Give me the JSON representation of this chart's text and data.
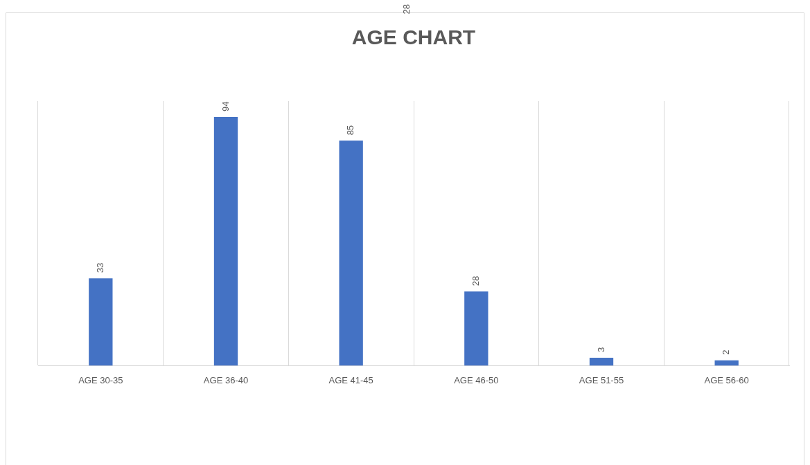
{
  "chart_data": {
    "type": "bar",
    "title": "AGE CHART",
    "categories": [
      "AGE 30-35",
      "AGE 36-40",
      "AGE 41-45",
      "AGE 46-50",
      "AGE 51-55",
      "AGE 56-60"
    ],
    "values": [
      33,
      94,
      85,
      28,
      3,
      2
    ],
    "color": "#4472c4",
    "data_labels": true,
    "grid": "x",
    "legend": false,
    "tick_labels": "x",
    "annotations": [
      "28"
    ]
  }
}
